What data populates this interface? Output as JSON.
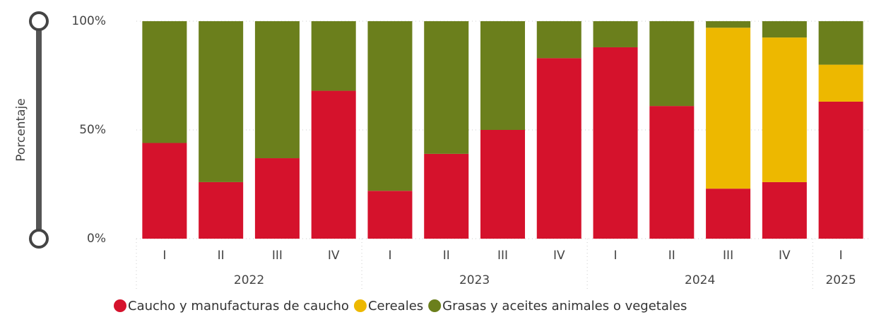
{
  "chart_data": {
    "type": "stacked_bar_100",
    "y_label": "Porcentaje",
    "categories": [
      "I",
      "II",
      "III",
      "IV",
      "I",
      "II",
      "III",
      "IV",
      "I",
      "II",
      "III",
      "IV",
      "I"
    ],
    "groups": [
      {
        "name": "2022",
        "count": 4
      },
      {
        "name": "2023",
        "count": 4
      },
      {
        "name": "2024",
        "count": 4
      },
      {
        "name": "2025",
        "count": 1
      }
    ],
    "series": [
      {
        "name": "Caucho y manufacturas de caucho",
        "color": "#d5122c",
        "values": [
          44,
          26,
          37,
          68,
          22,
          39,
          50,
          83,
          88,
          61,
          23,
          26,
          63
        ]
      },
      {
        "name": "Cereales",
        "color": "#edb800",
        "values": [
          0,
          0,
          0,
          0,
          0,
          0,
          0,
          0,
          0,
          0,
          74,
          66.5,
          17
        ]
      },
      {
        "name": "Grasas y aceites animales o vegetales",
        "color": "#6b7f1c",
        "values": [
          56,
          74,
          63,
          32,
          78,
          61,
          50,
          17,
          12,
          39,
          3,
          7.5,
          20
        ]
      }
    ],
    "ylim": [
      0,
      100
    ],
    "yticks": [
      {
        "value": 0,
        "label": "0%"
      },
      {
        "value": 50,
        "label": "50%"
      },
      {
        "value": 100,
        "label": "100%"
      }
    ],
    "grid": true
  }
}
